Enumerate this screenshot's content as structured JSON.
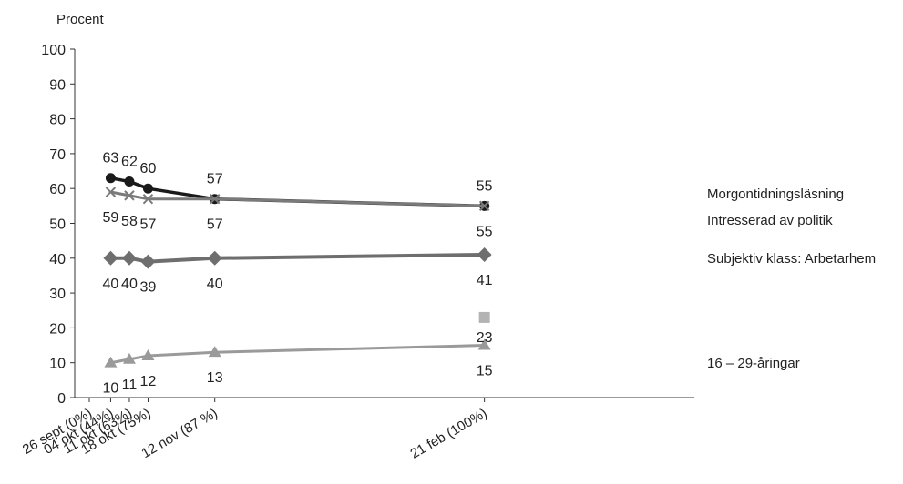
{
  "chart_data": {
    "type": "line",
    "ylabel": "Procent",
    "ylim": [
      0,
      100
    ],
    "yticks": [
      0,
      10,
      20,
      30,
      40,
      50,
      60,
      70,
      80,
      90,
      100
    ],
    "grid": false,
    "legend_placement": "right",
    "categories": [
      "26 sept (0%)",
      "04 okt (44%)",
      "11 okt (63%)",
      "18 okt (75%)",
      "12 nov (87 %)",
      "21 feb (100%)"
    ],
    "x_days": [
      0,
      8,
      15,
      22,
      47,
      148
    ],
    "series": [
      {
        "name": "Morgontidningsläsning",
        "marker": "circle",
        "color": "#1a1a1a",
        "points": [
          [
            8,
            63
          ],
          [
            15,
            62
          ],
          [
            22,
            60
          ],
          [
            47,
            57
          ],
          [
            148,
            55
          ]
        ],
        "labels": [
          "63",
          "62",
          "60",
          "57",
          "55"
        ],
        "label_pos": "above"
      },
      {
        "name": "Intresserad av politik",
        "marker": "x",
        "color": "#7a7a7a",
        "points": [
          [
            8,
            59
          ],
          [
            15,
            58
          ],
          [
            22,
            57
          ],
          [
            47,
            57
          ],
          [
            148,
            55
          ]
        ],
        "labels": [
          "59",
          "58",
          "57",
          "57",
          "55"
        ],
        "label_pos": "below"
      },
      {
        "name": "Subjektiv klass: Arbetarhem",
        "marker": "diamond",
        "color": "#6e6e6e",
        "points": [
          [
            8,
            40
          ],
          [
            15,
            40
          ],
          [
            22,
            39
          ],
          [
            47,
            40
          ],
          [
            148,
            41
          ]
        ],
        "labels": [
          "40",
          "40",
          "39",
          "40",
          "41"
        ],
        "label_pos": "below"
      },
      {
        "name": "16 – 29-åringar",
        "marker": "triangle",
        "color": "#9a9a9a",
        "points": [
          [
            8,
            10
          ],
          [
            15,
            11
          ],
          [
            22,
            12
          ],
          [
            47,
            13
          ],
          [
            148,
            15
          ]
        ],
        "labels": [
          "10",
          "11",
          "12",
          "13",
          "15"
        ],
        "label_pos": "below"
      },
      {
        "name": "",
        "marker": "square",
        "color": "#b3b3b3",
        "points": [
          [
            148,
            23
          ]
        ],
        "labels": [
          "23"
        ],
        "label_pos": "below"
      }
    ]
  }
}
